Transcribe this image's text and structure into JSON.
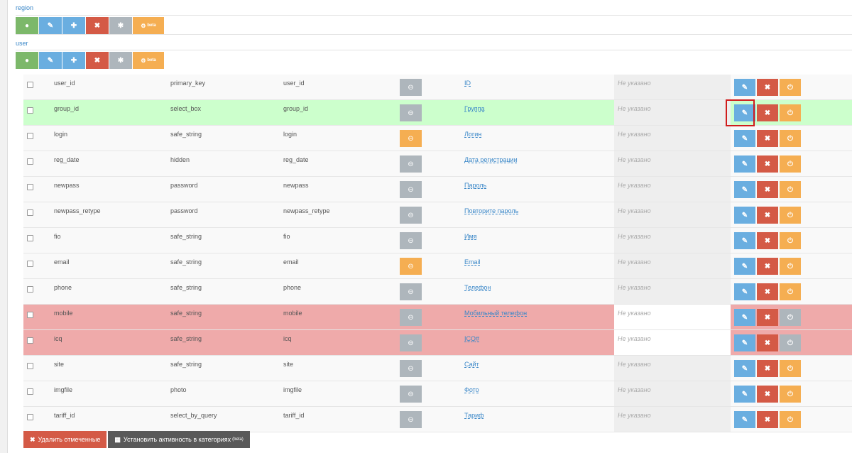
{
  "sections": {
    "region": {
      "title": "region",
      "beta": "beta"
    },
    "user": {
      "title": "user",
      "beta": "beta"
    }
  },
  "icons": {
    "user": "user-icon",
    "edit": "pencil-icon",
    "add": "plus-icon",
    "delete": "times-icon",
    "asterisk": "asterisk-icon",
    "gear": "gear-icon",
    "toggle_state": "minus-circle-icon",
    "power": "power-icon"
  },
  "colors": {
    "green": "#7cb86a",
    "blue": "#6aaee0",
    "red": "#d45a46",
    "grey": "#aeb6bc",
    "orange": "#f5ae52",
    "row_green": "#ccffcc",
    "row_red": "#efaaaa",
    "link": "#3a87c8",
    "focus_box": "#d01c1c"
  },
  "rows": [
    {
      "name": "user_id",
      "type": "primary_key",
      "key": "user_id",
      "title": "ID",
      "unset": "Не указано",
      "state": "grey",
      "highlight": "none",
      "active": true
    },
    {
      "name": "group_id",
      "type": "select_box",
      "key": "group_id",
      "title": "Группа",
      "unset": "Не указано",
      "state": "grey",
      "highlight": "green",
      "active": true
    },
    {
      "name": "login",
      "type": "safe_string",
      "key": "login",
      "title": "Логин",
      "unset": "Не указано",
      "state": "orange",
      "highlight": "none",
      "active": true
    },
    {
      "name": "reg_date",
      "type": "hidden",
      "key": "reg_date",
      "title": "Дата регистрации",
      "unset": "Не указано",
      "state": "grey",
      "highlight": "none",
      "active": true
    },
    {
      "name": "newpass",
      "type": "password",
      "key": "newpass",
      "title": "Пароль",
      "unset": "Не указано",
      "state": "grey",
      "highlight": "none",
      "active": true
    },
    {
      "name": "newpass_retype",
      "type": "password",
      "key": "newpass_retype",
      "title": "Повторите пароль",
      "unset": "Не указано",
      "state": "grey",
      "highlight": "none",
      "active": true
    },
    {
      "name": "fio",
      "type": "safe_string",
      "key": "fio",
      "title": "Имя",
      "unset": "Не указано",
      "state": "grey",
      "highlight": "none",
      "active": true
    },
    {
      "name": "email",
      "type": "safe_string",
      "key": "email",
      "title": "Email",
      "unset": "Не указано",
      "state": "orange",
      "highlight": "none",
      "active": true
    },
    {
      "name": "phone",
      "type": "safe_string",
      "key": "phone",
      "title": "Телефон",
      "unset": "Не указано",
      "state": "grey",
      "highlight": "none",
      "active": true
    },
    {
      "name": "mobile",
      "type": "safe_string",
      "key": "mobile",
      "title": "Мобильный телефон",
      "unset": "Не указано",
      "state": "grey",
      "highlight": "red",
      "active": false
    },
    {
      "name": "icq",
      "type": "safe_string",
      "key": "icq",
      "title": "ICQ#",
      "unset": "Не указано",
      "state": "grey",
      "highlight": "red",
      "active": false
    },
    {
      "name": "site",
      "type": "safe_string",
      "key": "site",
      "title": "Сайт",
      "unset": "Не указано",
      "state": "grey",
      "highlight": "none",
      "active": true
    },
    {
      "name": "imgfile",
      "type": "photo",
      "key": "imgfile",
      "title": "Фото",
      "unset": "Не указано",
      "state": "grey",
      "highlight": "none",
      "active": true
    },
    {
      "name": "tariff_id",
      "type": "select_by_query",
      "key": "tariff_id",
      "title": "Тариф",
      "unset": "Не указано",
      "state": "grey",
      "highlight": "none",
      "active": true
    }
  ],
  "bottom": {
    "delete_label": "Удалить отмеченные",
    "activity_label": "Установить активность в категориях",
    "activity_sup": "(beta)"
  }
}
